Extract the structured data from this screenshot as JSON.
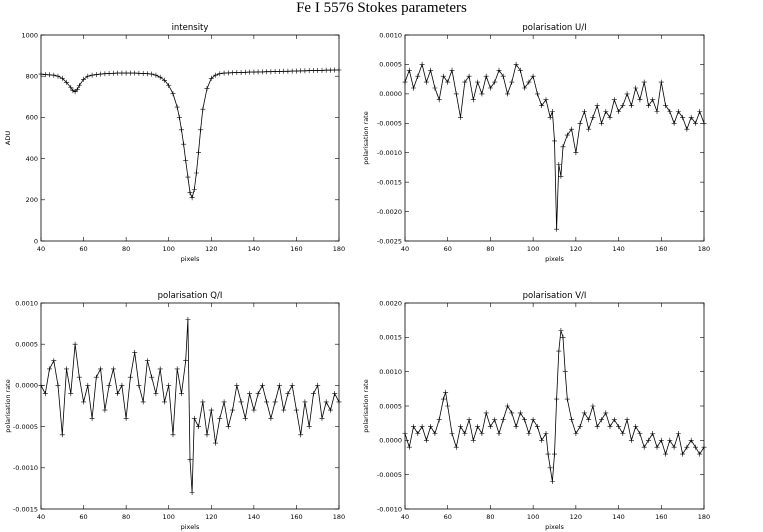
{
  "figure": {
    "title": "Fe I 5576 Stokes parameters"
  },
  "chart_data": [
    {
      "type": "line",
      "title": "intensity",
      "xlabel": "pixels",
      "ylabel": "ADU",
      "xlim": [
        40,
        180
      ],
      "ylim": [
        0,
        1000
      ],
      "xticks": [
        "40",
        "60",
        "80",
        "100",
        "120",
        "140",
        "160",
        "180"
      ],
      "yticks": [
        "0",
        "200",
        "400",
        "600",
        "800",
        "1000"
      ],
      "x": [
        40,
        42,
        44,
        46,
        48,
        50,
        52,
        54,
        55,
        56,
        57,
        58,
        60,
        62,
        64,
        66,
        68,
        70,
        72,
        74,
        76,
        78,
        80,
        82,
        84,
        86,
        88,
        90,
        92,
        94,
        96,
        98,
        100,
        102,
        104,
        105,
        106,
        107,
        108,
        109,
        110,
        111,
        112,
        113,
        114,
        115,
        116,
        118,
        120,
        122,
        124,
        126,
        128,
        130,
        132,
        134,
        136,
        138,
        140,
        142,
        144,
        146,
        148,
        150,
        152,
        154,
        156,
        158,
        160,
        162,
        164,
        166,
        168,
        170,
        172,
        174,
        176,
        178,
        180
      ],
      "series": [
        {
          "values": [
            810,
            808,
            807,
            805,
            800,
            790,
            770,
            745,
            730,
            725,
            735,
            755,
            785,
            800,
            805,
            808,
            810,
            812,
            813,
            814,
            815,
            815,
            815,
            815,
            815,
            814,
            813,
            812,
            810,
            805,
            795,
            780,
            755,
            715,
            650,
            600,
            540,
            470,
            390,
            310,
            235,
            210,
            250,
            330,
            430,
            540,
            640,
            740,
            790,
            805,
            812,
            815,
            816,
            817,
            818,
            818,
            819,
            820,
            820,
            821,
            821,
            822,
            822,
            823,
            823,
            824,
            824,
            825,
            825,
            826,
            826,
            827,
            827,
            828,
            828,
            829,
            829,
            830,
            830
          ]
        }
      ]
    },
    {
      "type": "line",
      "title": "polarisation U/I",
      "xlabel": "pixels",
      "ylabel": "polarisation rate",
      "xlim": [
        40,
        180
      ],
      "ylim": [
        -0.0025,
        0.001
      ],
      "xticks": [
        "40",
        "60",
        "80",
        "100",
        "120",
        "140",
        "160",
        "180"
      ],
      "yticks": [
        "-0.0025",
        "-0.0020",
        "-0.0015",
        "-0.0010",
        "-0.0005",
        "0.0000",
        "0.0005",
        "0.0010"
      ],
      "x": [
        40,
        42,
        44,
        46,
        48,
        50,
        52,
        54,
        56,
        58,
        60,
        62,
        64,
        66,
        68,
        70,
        72,
        74,
        76,
        78,
        80,
        82,
        84,
        86,
        88,
        90,
        92,
        94,
        96,
        98,
        100,
        102,
        104,
        106,
        108,
        109,
        110,
        111,
        112,
        113,
        114,
        116,
        118,
        120,
        122,
        124,
        126,
        128,
        130,
        132,
        134,
        136,
        138,
        140,
        142,
        144,
        146,
        148,
        150,
        152,
        154,
        156,
        158,
        160,
        162,
        164,
        166,
        168,
        170,
        172,
        174,
        176,
        178,
        180
      ],
      "series": [
        {
          "values": [
            0.0002,
            0.0004,
            0.0001,
            0.0003,
            0.0005,
            0.0002,
            0.0004,
            0.0001,
            -0.0001,
            0.0003,
            0.0002,
            0.0004,
            0.0,
            -0.0004,
            0.0002,
            0.0003,
            -0.0001,
            0.0002,
            0.0,
            0.0003,
            0.0001,
            0.0002,
            0.0004,
            0.0003,
            0.0,
            0.0002,
            0.0005,
            0.0004,
            0.0001,
            0.0002,
            0.0003,
            0.0,
            -0.0002,
            -0.0001,
            -0.0004,
            -0.0003,
            -0.0008,
            -0.0023,
            -0.0012,
            -0.0014,
            -0.0009,
            -0.0007,
            -0.0006,
            -0.001,
            -0.0005,
            -0.0003,
            -0.0006,
            -0.0004,
            -0.0002,
            -0.0005,
            -0.0003,
            -0.0004,
            -0.0001,
            -0.0003,
            -0.0002,
            0.0,
            -0.0002,
            0.0001,
            -0.0001,
            0.0002,
            -0.0002,
            -0.0001,
            -0.0003,
            0.0002,
            -0.0002,
            -0.0003,
            -0.0005,
            -0.0003,
            -0.0004,
            -0.0006,
            -0.0004,
            -0.0005,
            -0.0003,
            -0.0005
          ]
        }
      ]
    },
    {
      "type": "line",
      "title": "polarisation Q/I",
      "xlabel": "pixels",
      "ylabel": "polarisation rate",
      "xlim": [
        40,
        180
      ],
      "ylim": [
        -0.0015,
        0.001
      ],
      "xticks": [
        "40",
        "60",
        "80",
        "100",
        "120",
        "140",
        "160",
        "180"
      ],
      "yticks": [
        "-0.0015",
        "-0.0010",
        "-0.0005",
        "0.0000",
        "0.0005",
        "0.0010"
      ],
      "x": [
        40,
        42,
        44,
        46,
        48,
        50,
        52,
        54,
        56,
        58,
        60,
        62,
        64,
        66,
        68,
        70,
        72,
        74,
        76,
        78,
        80,
        82,
        84,
        86,
        88,
        90,
        92,
        94,
        96,
        98,
        100,
        102,
        104,
        106,
        108,
        109,
        110,
        111,
        112,
        114,
        116,
        118,
        120,
        122,
        124,
        126,
        128,
        130,
        132,
        134,
        136,
        138,
        140,
        142,
        144,
        146,
        148,
        150,
        152,
        154,
        156,
        158,
        160,
        162,
        164,
        166,
        168,
        170,
        172,
        174,
        176,
        178,
        180
      ],
      "series": [
        {
          "values": [
            0.0,
            -0.0001,
            0.0002,
            0.0003,
            0.0,
            -0.0006,
            0.0002,
            -0.0001,
            0.0005,
            0.0001,
            -0.0002,
            0.0,
            -0.0004,
            0.0001,
            0.0002,
            -0.0003,
            0.0,
            0.0002,
            -0.0001,
            0.0,
            -0.0004,
            0.0001,
            0.0004,
            0.0,
            -0.0002,
            0.0003,
            0.0001,
            -0.0001,
            0.0002,
            -0.0002,
            0.0,
            -0.0006,
            0.0002,
            -0.0001,
            0.0003,
            0.0008,
            -0.0009,
            -0.0013,
            -0.0004,
            -0.0005,
            -0.0002,
            -0.0006,
            -0.0003,
            -0.0007,
            -0.0004,
            -0.0002,
            -0.0005,
            -0.0003,
            0.0,
            -0.0002,
            -0.0004,
            -0.0001,
            -0.0003,
            -0.0001,
            0.0,
            -0.0002,
            -0.0004,
            -0.0002,
            0.0,
            -0.0003,
            -0.0001,
            0.0,
            -0.0003,
            -0.0006,
            -0.0002,
            -0.0005,
            -0.0001,
            0.0,
            -0.0004,
            -0.0002,
            -0.0003,
            -0.0001,
            -0.0002
          ]
        }
      ]
    },
    {
      "type": "line",
      "title": "polarisation V/I",
      "xlabel": "pixels",
      "ylabel": "polarisation rate",
      "xlim": [
        40,
        180
      ],
      "ylim": [
        -0.001,
        0.002
      ],
      "xticks": [
        "40",
        "60",
        "80",
        "100",
        "120",
        "140",
        "160",
        "180"
      ],
      "yticks": [
        "-0.0010",
        "-0.0005",
        "0.0000",
        "0.0005",
        "0.0010",
        "0.0015",
        "0.0020"
      ],
      "x": [
        40,
        42,
        44,
        46,
        48,
        50,
        52,
        54,
        56,
        58,
        59,
        60,
        62,
        64,
        66,
        68,
        70,
        72,
        74,
        76,
        78,
        80,
        82,
        84,
        86,
        88,
        90,
        92,
        94,
        96,
        98,
        100,
        102,
        104,
        106,
        107,
        108,
        109,
        110,
        111,
        112,
        113,
        114,
        115,
        116,
        118,
        120,
        122,
        124,
        126,
        128,
        130,
        132,
        134,
        136,
        138,
        140,
        142,
        144,
        146,
        148,
        150,
        152,
        154,
        156,
        158,
        160,
        162,
        164,
        166,
        168,
        170,
        172,
        174,
        176,
        178,
        180
      ],
      "series": [
        {
          "values": [
            0.0001,
            -0.0001,
            0.0002,
            0.0001,
            0.0002,
            0.0,
            0.0002,
            0.0001,
            0.0003,
            0.0006,
            0.0007,
            0.0005,
            0.0001,
            -0.0001,
            0.0002,
            0.0001,
            0.0003,
            0.0,
            0.0002,
            0.0001,
            0.0004,
            0.0002,
            0.0003,
            0.0001,
            0.0003,
            0.0005,
            0.0004,
            0.0002,
            0.0004,
            0.0003,
            0.0001,
            0.0003,
            0.0002,
            0.0,
            0.0001,
            -0.0002,
            -0.0004,
            -0.0006,
            -0.0002,
            0.0006,
            0.0013,
            0.0016,
            0.0015,
            0.001,
            0.0006,
            0.0003,
            0.0001,
            0.0002,
            0.0004,
            0.0003,
            0.0005,
            0.0002,
            0.0003,
            0.0004,
            0.0002,
            0.0003,
            0.0002,
            0.0001,
            0.0003,
            0.0,
            0.0002,
            0.0001,
            -0.0001,
            0.0,
            0.0001,
            -0.0001,
            0.0,
            -0.0002,
            0.0,
            -0.0001,
            0.0001,
            -0.0002,
            -0.0001,
            0.0,
            -0.0001,
            -0.0002,
            -0.0001
          ]
        }
      ]
    }
  ]
}
